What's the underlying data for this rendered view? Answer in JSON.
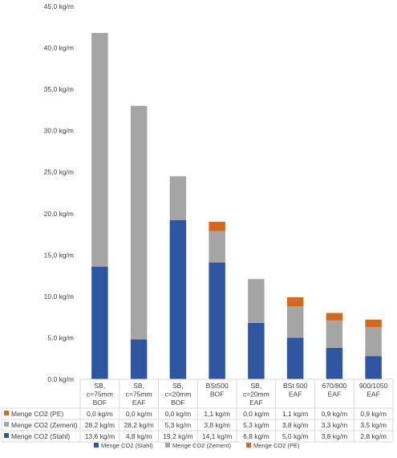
{
  "chart_data": {
    "type": "bar",
    "stacked": true,
    "categories": [
      [
        "SB,",
        "c=75mm",
        "BOF"
      ],
      [
        "SB,",
        "c=75mm",
        "EAF"
      ],
      [
        "SB,",
        "c=20mm",
        "BOF"
      ],
      [
        "BSt500",
        "BOF"
      ],
      [
        "SB,",
        "c=20mm",
        "EAF"
      ],
      [
        "BSt 500",
        "EAF"
      ],
      [
        "670/800",
        "EAF"
      ],
      [
        "900/1050",
        "EAF"
      ]
    ],
    "series": [
      {
        "name": "Menge CO2 (Stahl)",
        "color": "#2E55A0",
        "values": [
          13.6,
          4.8,
          19.2,
          14.1,
          6.8,
          5.0,
          3.8,
          2.8
        ],
        "labels": [
          "13,6 kg/m",
          "4,8 kg/m",
          "19,2 kg/m",
          "14,1 kg/m",
          "6,8 kg/m",
          "5,0 kg/m",
          "3,8 kg/m",
          "2,8 kg/m"
        ]
      },
      {
        "name": "Menge CO2 (Zement)",
        "color": "#A5A5A5",
        "values": [
          28.2,
          28.2,
          5.3,
          3.8,
          5.3,
          3.8,
          3.3,
          3.5
        ],
        "labels": [
          "28,2 kg/m",
          "28,2 kg/m",
          "5,3 kg/m",
          "3,8 kg/m",
          "5,3 kg/m",
          "3,8 kg/m",
          "3,3 kg/m",
          "3,5 kg/m"
        ]
      },
      {
        "name": "Menge CO2 (PE)",
        "color": "#D2691E",
        "values": [
          0.0,
          0.0,
          0.0,
          1.1,
          0.0,
          1.1,
          0.9,
          0.9
        ],
        "labels": [
          "0,0 kg/m",
          "0,0 kg/m",
          "0,0 kg/m",
          "1,1 kg/m",
          "0,0 kg/m",
          "1,1 kg/m",
          "0,9 kg/m",
          "0,9 kg/m"
        ]
      }
    ],
    "table_row_order": [
      2,
      1,
      0
    ],
    "ylim": [
      0,
      45
    ],
    "ytick_step": 5,
    "ytick_labels": [
      "0,0 kg/m",
      "5,0 kg/m",
      "10,0 kg/m",
      "15,0 kg/m",
      "20,0 kg/m",
      "25,0 kg/m",
      "30,0 kg/m",
      "35,0 kg/m",
      "40,0 kg/m",
      "45,0 kg/m"
    ],
    "legend_order": [
      0,
      1,
      2
    ],
    "legend_position": "bottom",
    "grid": false,
    "title": "",
    "xlabel": "",
    "ylabel": ""
  }
}
